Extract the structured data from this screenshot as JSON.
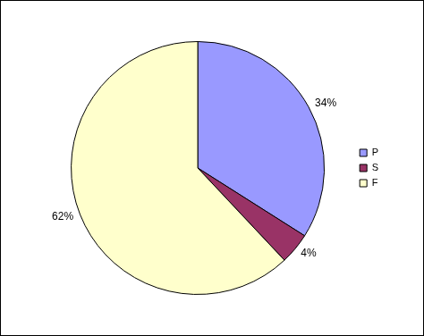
{
  "chart_data": {
    "type": "pie",
    "categories": [
      "P",
      "S",
      "F"
    ],
    "values": [
      34,
      4,
      62
    ],
    "value_labels": [
      "34%",
      "4%",
      "62%"
    ],
    "colors": [
      "#9999ff",
      "#993366",
      "#ffffcc"
    ],
    "legend": "right",
    "data_labels": true
  }
}
